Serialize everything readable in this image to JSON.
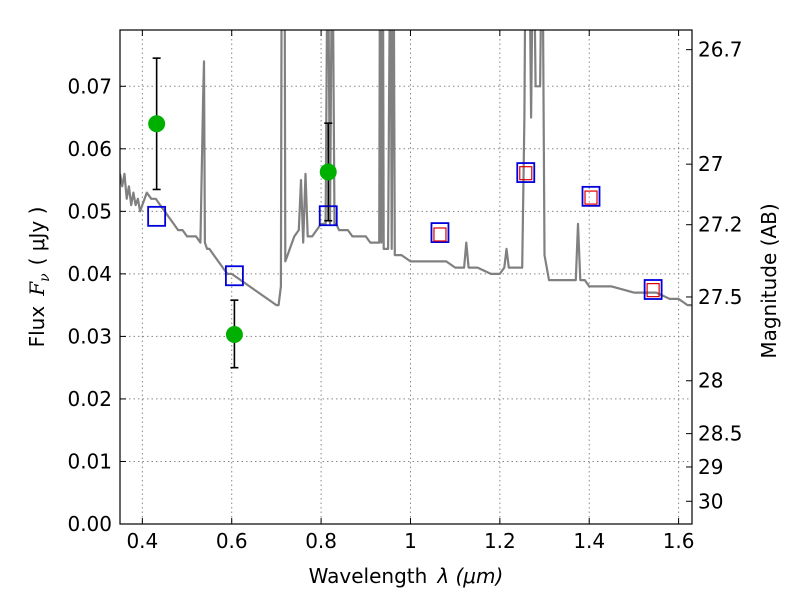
{
  "chart_data": {
    "type": "scatter",
    "xlabel": "Wavelength",
    "xlabel_math": "λ (μm)",
    "ylabel": "Flux",
    "ylabel_math": "F",
    "ylabel_sub": "ν",
    "ylabel_unit": "( μJy )",
    "y2label": "Magnitude (AB)",
    "xlim": [
      0.35,
      1.63
    ],
    "ylim": [
      0.0,
      0.079
    ],
    "x_ticks": [
      0.4,
      0.6,
      0.8,
      1.0,
      1.2,
      1.4,
      1.6
    ],
    "x_tick_labels": [
      "0.4",
      "0.6",
      "0.8",
      "1",
      "1.2",
      "1.4",
      "1.6"
    ],
    "y_ticks": [
      0.0,
      0.01,
      0.02,
      0.03,
      0.04,
      0.05,
      0.06,
      0.07
    ],
    "y_tick_labels": [
      "0.00",
      "0.01",
      "0.02",
      "0.03",
      "0.04",
      "0.05",
      "0.06",
      "0.07"
    ],
    "y2_ticks": [
      26.7,
      27,
      27.2,
      27.5,
      28,
      28.5,
      29,
      30
    ],
    "y2_tick_labels": [
      "26.7",
      "27",
      "27.2",
      "27.5",
      "28",
      "28.5",
      "29",
      "30"
    ],
    "grid": true,
    "colors": {
      "model": "#808080",
      "observed": "#00b000",
      "synthetic": "#0000dd",
      "synthetic_inner": "#dd0000",
      "errorbar": "#000000"
    },
    "series": [
      {
        "kind": "model_spectrum",
        "x": [
          0.35,
          0.355,
          0.36,
          0.365,
          0.37,
          0.375,
          0.38,
          0.385,
          0.39,
          0.395,
          0.4,
          0.41,
          0.42,
          0.43,
          0.44,
          0.45,
          0.46,
          0.47,
          0.48,
          0.49,
          0.5,
          0.51,
          0.52,
          0.53,
          0.536,
          0.538,
          0.54,
          0.545,
          0.55,
          0.56,
          0.57,
          0.58,
          0.59,
          0.6,
          0.62,
          0.64,
          0.66,
          0.68,
          0.7,
          0.705,
          0.71,
          0.712,
          0.715,
          0.718,
          0.72,
          0.725,
          0.73,
          0.74,
          0.75,
          0.755,
          0.76,
          0.765,
          0.77,
          0.78,
          0.79,
          0.8,
          0.81,
          0.815,
          0.82,
          0.825,
          0.83,
          0.834,
          0.84,
          0.85,
          0.86,
          0.87,
          0.88,
          0.89,
          0.9,
          0.91,
          0.92,
          0.93,
          0.932,
          0.935,
          0.938,
          0.94,
          0.95,
          0.955,
          0.958,
          0.962,
          0.965,
          0.97,
          0.98,
          1.0,
          1.02,
          1.04,
          1.06,
          1.08,
          1.1,
          1.12,
          1.125,
          1.13,
          1.15,
          1.18,
          1.2,
          1.21,
          1.215,
          1.22,
          1.24,
          1.25,
          1.255,
          1.258,
          1.265,
          1.27,
          1.275,
          1.28,
          1.29,
          1.295,
          1.3,
          1.31,
          1.33,
          1.35,
          1.36,
          1.37,
          1.375,
          1.38,
          1.39,
          1.4,
          1.42,
          1.45,
          1.5,
          1.55,
          1.58,
          1.6,
          1.62,
          1.63
        ],
        "y": [
          0.056,
          0.054,
          0.056,
          0.052,
          0.054,
          0.051,
          0.053,
          0.051,
          0.052,
          0.05,
          0.051,
          0.053,
          0.052,
          0.052,
          0.051,
          0.05,
          0.049,
          0.048,
          0.047,
          0.047,
          0.046,
          0.046,
          0.046,
          0.045,
          0.068,
          0.074,
          0.045,
          0.044,
          0.044,
          0.043,
          0.042,
          0.041,
          0.04,
          0.04,
          0.039,
          0.038,
          0.037,
          0.036,
          0.035,
          0.035,
          0.038,
          0.1,
          0.09,
          0.1,
          0.042,
          0.043,
          0.044,
          0.046,
          0.047,
          0.055,
          0.045,
          0.056,
          0.046,
          0.046,
          0.047,
          0.048,
          0.048,
          0.1,
          0.048,
          0.1,
          0.048,
          0.048,
          0.047,
          0.047,
          0.047,
          0.046,
          0.046,
          0.046,
          0.046,
          0.045,
          0.045,
          0.045,
          0.1,
          0.045,
          0.1,
          0.044,
          0.044,
          0.1,
          0.044,
          0.1,
          0.043,
          0.043,
          0.043,
          0.042,
          0.042,
          0.042,
          0.042,
          0.042,
          0.041,
          0.041,
          0.045,
          0.041,
          0.041,
          0.04,
          0.04,
          0.041,
          0.044,
          0.041,
          0.041,
          0.041,
          0.065,
          0.1,
          0.1,
          0.065,
          0.1,
          0.07,
          0.07,
          0.1,
          0.043,
          0.039,
          0.039,
          0.039,
          0.039,
          0.039,
          0.048,
          0.039,
          0.039,
          0.038,
          0.038,
          0.038,
          0.037,
          0.037,
          0.036,
          0.036,
          0.035,
          0.035
        ],
        "clip_top": true
      },
      {
        "kind": "observed_points",
        "x": [
          0.432,
          0.606,
          0.816
        ],
        "y": [
          0.064,
          0.0303,
          0.0563
        ],
        "yerr_low": [
          0.0535,
          0.025,
          0.0485
        ],
        "yerr_high": [
          0.0745,
          0.0358,
          0.0641
        ]
      },
      {
        "kind": "synthetic_photometry_blue",
        "x": [
          0.432,
          0.606,
          0.816,
          1.066,
          1.258,
          1.404,
          1.543
        ],
        "y": [
          0.0492,
          0.0397,
          0.0493,
          0.0466,
          0.0562,
          0.0524,
          0.0375
        ]
      },
      {
        "kind": "synthetic_photometry_red",
        "x": [
          1.066,
          1.258,
          1.404,
          1.543
        ],
        "y": [
          0.0463,
          0.0561,
          0.0522,
          0.0374
        ]
      }
    ]
  }
}
